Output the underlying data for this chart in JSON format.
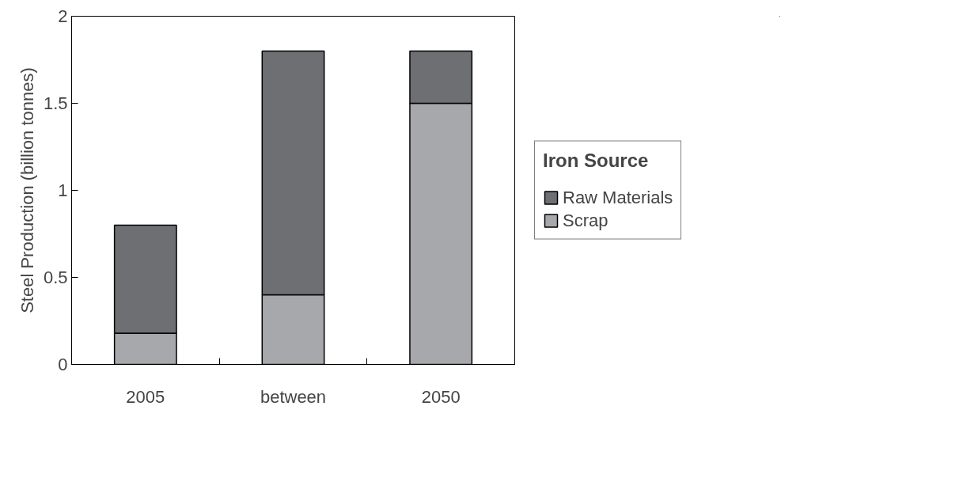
{
  "chart_data": {
    "type": "bar",
    "stacked": true,
    "ylabel": "Steel Production (billion tonnes)",
    "legend_title": "Iron Source",
    "legend": "right",
    "categories": [
      "2005",
      "between",
      "2050"
    ],
    "ylim": [
      0,
      2
    ],
    "yticks": [
      0,
      0.5,
      1,
      1.5,
      2
    ],
    "grid": false,
    "series": [
      {
        "name": "Scrap",
        "color": "#a7a8ab",
        "values": [
          0.18,
          0.4,
          1.5
        ]
      },
      {
        "name": "Raw Materials",
        "color": "#6e6f73",
        "values": [
          0.62,
          1.4,
          0.3
        ]
      }
    ]
  }
}
